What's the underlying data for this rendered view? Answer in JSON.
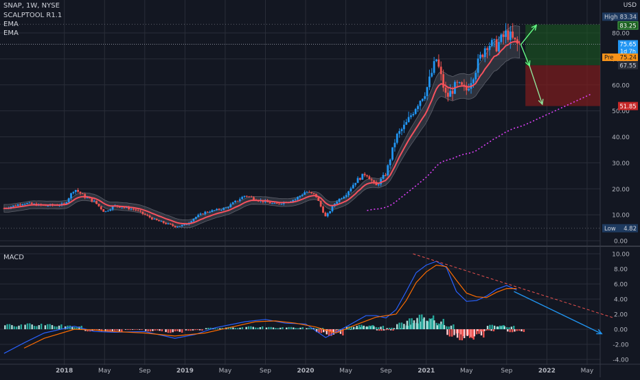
{
  "header": {
    "symbol_line": "SNAP, 1W, NYSE",
    "indicator_1": "SCALPTOOL R1.1",
    "indicator_2": "EMA",
    "indicator_3": "EMA",
    "currency": "USD",
    "macd_title": "MACD"
  },
  "colors": {
    "background": "#131722",
    "grid": "#2a2e39",
    "up": "#2196f3",
    "down": "#ef5350",
    "ema_fast": "#f7525f",
    "ema_slow": "#e040fb",
    "band_fill": "#787b86",
    "macd_line": "#2962ff",
    "signal_line": "#ff6d00",
    "hist_pos": "#26a69a",
    "hist_neg": "#ef5350",
    "target_zone": "#1b5e20",
    "stop_zone": "#7f1d1d"
  },
  "chart_data": [
    {
      "type": "candlestick",
      "title": "SNAP, 1W, NYSE",
      "ylim": [
        0,
        85
      ],
      "x_range": [
        "2017-07",
        "2022-06"
      ],
      "price_ticks": [
        "0.00",
        "10.00",
        "20.00",
        "30.00",
        "40.00",
        "50.00",
        "60.00",
        "70.00",
        "80.00"
      ],
      "x_ticks": [
        "2018",
        "May",
        "Sep",
        "2019",
        "May",
        "Sep",
        "2020",
        "May",
        "Sep",
        "2021",
        "May",
        "Sep",
        "2022",
        "May"
      ],
      "price_path": [
        [
          "2017-07",
          12.5
        ],
        [
          "2017-09",
          14.5
        ],
        [
          "2017-11",
          13.5
        ],
        [
          "2018-01",
          14.0
        ],
        [
          "2018-02",
          20.0
        ],
        [
          "2018-03",
          17.0
        ],
        [
          "2018-04",
          15.0
        ],
        [
          "2018-05",
          11.0
        ],
        [
          "2018-06",
          13.5
        ],
        [
          "2018-08",
          12.0
        ],
        [
          "2018-10",
          8.0
        ],
        [
          "2018-12",
          5.5
        ],
        [
          "2019-01",
          6.0
        ],
        [
          "2019-02",
          9.0
        ],
        [
          "2019-03",
          11.0
        ],
        [
          "2019-05",
          12.5
        ],
        [
          "2019-07",
          17.5
        ],
        [
          "2019-08",
          16.0
        ],
        [
          "2019-10",
          14.0
        ],
        [
          "2019-12",
          16.0
        ],
        [
          "2020-01",
          19.0
        ],
        [
          "2020-02",
          17.5
        ],
        [
          "2020-03",
          9.0
        ],
        [
          "2020-04",
          15.0
        ],
        [
          "2020-05",
          18.0
        ],
        [
          "2020-06",
          23.0
        ],
        [
          "2020-07",
          26.0
        ],
        [
          "2020-08",
          21.0
        ],
        [
          "2020-09",
          26.0
        ],
        [
          "2020-10",
          40.0
        ],
        [
          "2020-11",
          45.0
        ],
        [
          "2020-12",
          52.0
        ],
        [
          "2021-01",
          58.0
        ],
        [
          "2021-02",
          70.0
        ],
        [
          "2021-03",
          55.0
        ],
        [
          "2021-04",
          60.0
        ],
        [
          "2021-05",
          58.0
        ],
        [
          "2021-06",
          67.0
        ],
        [
          "2021-07",
          76.0
        ],
        [
          "2021-08",
          75.0
        ],
        [
          "2021-09",
          80.0
        ],
        [
          "2021-10",
          75.5
        ]
      ],
      "labels": {
        "high_label": "High",
        "high_value": "83.34",
        "target_value": "83.25",
        "last_value": "75.65",
        "countdown": "1d 7h",
        "pre_label": "Pre",
        "pre_value": "75.24",
        "entry_value": "67.55",
        "stop_value": "51.85",
        "low_label": "Low",
        "low_value": "4.82"
      },
      "trade_zone": {
        "entry": 67.55,
        "target": 83.25,
        "stop": 51.85
      }
    },
    {
      "type": "macd",
      "title": "MACD",
      "ylim": [
        -4.5,
        10.5
      ],
      "ticks": [
        "10.00",
        "8.00",
        "6.00",
        "4.00",
        "2.00",
        "0.00",
        "-2.00",
        "-4.00"
      ],
      "macd_path": [
        [
          "2017-07",
          -3.2
        ],
        [
          "2017-09",
          -1.8
        ],
        [
          "2017-11",
          -0.5
        ],
        [
          "2018-02",
          0.4
        ],
        [
          "2018-04",
          -0.3
        ],
        [
          "2018-06",
          -0.4
        ],
        [
          "2018-09",
          -0.3
        ],
        [
          "2018-12",
          -1.2
        ],
        [
          "2019-02",
          -0.7
        ],
        [
          "2019-04",
          0.2
        ],
        [
          "2019-07",
          1.0
        ],
        [
          "2019-09",
          1.3
        ],
        [
          "2019-11",
          0.8
        ],
        [
          "2020-01",
          0.7
        ],
        [
          "2020-03",
          -1.1
        ],
        [
          "2020-05",
          0.3
        ],
        [
          "2020-07",
          1.8
        ],
        [
          "2020-08",
          1.8
        ],
        [
          "2020-09",
          1.5
        ],
        [
          "2020-10",
          2.6
        ],
        [
          "2020-11",
          5.0
        ],
        [
          "2020-12",
          7.5
        ],
        [
          "2021-01",
          8.5
        ],
        [
          "2021-02",
          9.0
        ],
        [
          "2021-03",
          8.2
        ],
        [
          "2021-04",
          5.0
        ],
        [
          "2021-05",
          3.7
        ],
        [
          "2021-06",
          3.8
        ],
        [
          "2021-07",
          4.4
        ],
        [
          "2021-08",
          5.3
        ],
        [
          "2021-09",
          5.8
        ],
        [
          "2021-10",
          5.2
        ]
      ],
      "signal_path": [
        [
          "2017-09",
          -2.5
        ],
        [
          "2017-11",
          -1.2
        ],
        [
          "2018-02",
          0.0
        ],
        [
          "2018-04",
          -0.1
        ],
        [
          "2018-06",
          -0.3
        ],
        [
          "2018-09",
          -0.5
        ],
        [
          "2018-12",
          -0.9
        ],
        [
          "2019-03",
          -0.5
        ],
        [
          "2019-05",
          0.1
        ],
        [
          "2019-08",
          1.0
        ],
        [
          "2019-10",
          1.1
        ],
        [
          "2019-12",
          0.8
        ],
        [
          "2020-02",
          0.3
        ],
        [
          "2020-04",
          -0.5
        ],
        [
          "2020-06",
          0.6
        ],
        [
          "2020-08",
          1.6
        ],
        [
          "2020-10",
          2.0
        ],
        [
          "2020-11",
          3.8
        ],
        [
          "2020-12",
          6.2
        ],
        [
          "2021-01",
          7.6
        ],
        [
          "2021-02",
          8.5
        ],
        [
          "2021-03",
          8.3
        ],
        [
          "2021-04",
          6.5
        ],
        [
          "2021-05",
          4.8
        ],
        [
          "2021-06",
          4.3
        ],
        [
          "2021-07",
          4.2
        ],
        [
          "2021-08",
          4.9
        ],
        [
          "2021-09",
          5.4
        ],
        [
          "2021-10",
          5.4
        ]
      ],
      "histogram": [
        [
          "2017-08",
          0.7
        ],
        [
          "2017-10",
          0.8
        ],
        [
          "2017-12",
          0.7
        ],
        [
          "2018-02",
          0.5
        ],
        [
          "2018-04",
          -0.3
        ],
        [
          "2018-06",
          -0.4
        ],
        [
          "2018-08",
          -0.1
        ],
        [
          "2018-10",
          -0.3
        ],
        [
          "2018-12",
          -0.5
        ],
        [
          "2019-02",
          -0.2
        ],
        [
          "2019-04",
          0.2
        ],
        [
          "2019-06",
          0.3
        ],
        [
          "2019-08",
          0.4
        ],
        [
          "2019-10",
          0.3
        ],
        [
          "2019-12",
          0.3
        ],
        [
          "2020-02",
          0.2
        ],
        [
          "2020-03",
          -0.5
        ],
        [
          "2020-04",
          -0.9
        ],
        [
          "2020-05",
          0.0
        ],
        [
          "2020-06",
          0.4
        ],
        [
          "2020-07",
          0.6
        ],
        [
          "2020-08",
          0.5
        ],
        [
          "2020-09",
          -0.2
        ],
        [
          "2020-10",
          0.2
        ],
        [
          "2020-11",
          0.9
        ],
        [
          "2020-12",
          1.5
        ],
        [
          "2021-01",
          2.0
        ],
        [
          "2021-02",
          1.5
        ],
        [
          "2021-03",
          0.7
        ],
        [
          "2021-04",
          -1.0
        ],
        [
          "2021-05",
          -1.5
        ],
        [
          "2021-06",
          -1.2
        ],
        [
          "2021-07",
          -0.3
        ],
        [
          "2021-08",
          0.6
        ],
        [
          "2021-09",
          0.5
        ],
        [
          "2021-10",
          -0.4
        ]
      ]
    }
  ]
}
